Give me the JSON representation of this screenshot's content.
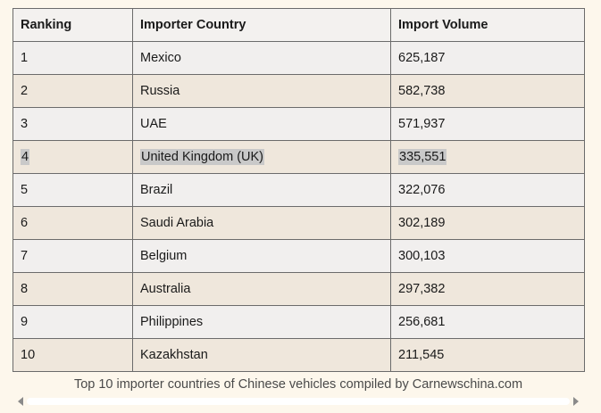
{
  "table": {
    "headers": [
      "Ranking",
      "Importer Country",
      "Import Volume"
    ],
    "rows": [
      [
        "1",
        "Mexico",
        "625,187"
      ],
      [
        "2",
        "Russia",
        "582,738"
      ],
      [
        "3",
        "UAE",
        "571,937"
      ],
      [
        "4",
        "United Kingdom (UK)",
        "335,551"
      ],
      [
        "5",
        "Brazil",
        "322,076"
      ],
      [
        "6",
        "Saudi Arabia",
        "302,189"
      ],
      [
        "7",
        "Belgium",
        "300,103"
      ],
      [
        "8",
        "Australia",
        "297,382"
      ],
      [
        "9",
        "Philippines",
        "256,681"
      ],
      [
        "10",
        "Kazakhstan",
        "211,545"
      ]
    ],
    "caption": "Top 10 importer countries of Chinese vehicles compiled by Carnewschina.com",
    "highlighted_row_index": 3
  },
  "colors": {
    "background": "#fdf7ec",
    "row_odd": "#f1efee",
    "row_even": "#efe7dc",
    "highlight": "#c9c9c9"
  },
  "icons": {
    "scroll_left": "triangle-left-icon",
    "scroll_right": "triangle-right-icon"
  }
}
